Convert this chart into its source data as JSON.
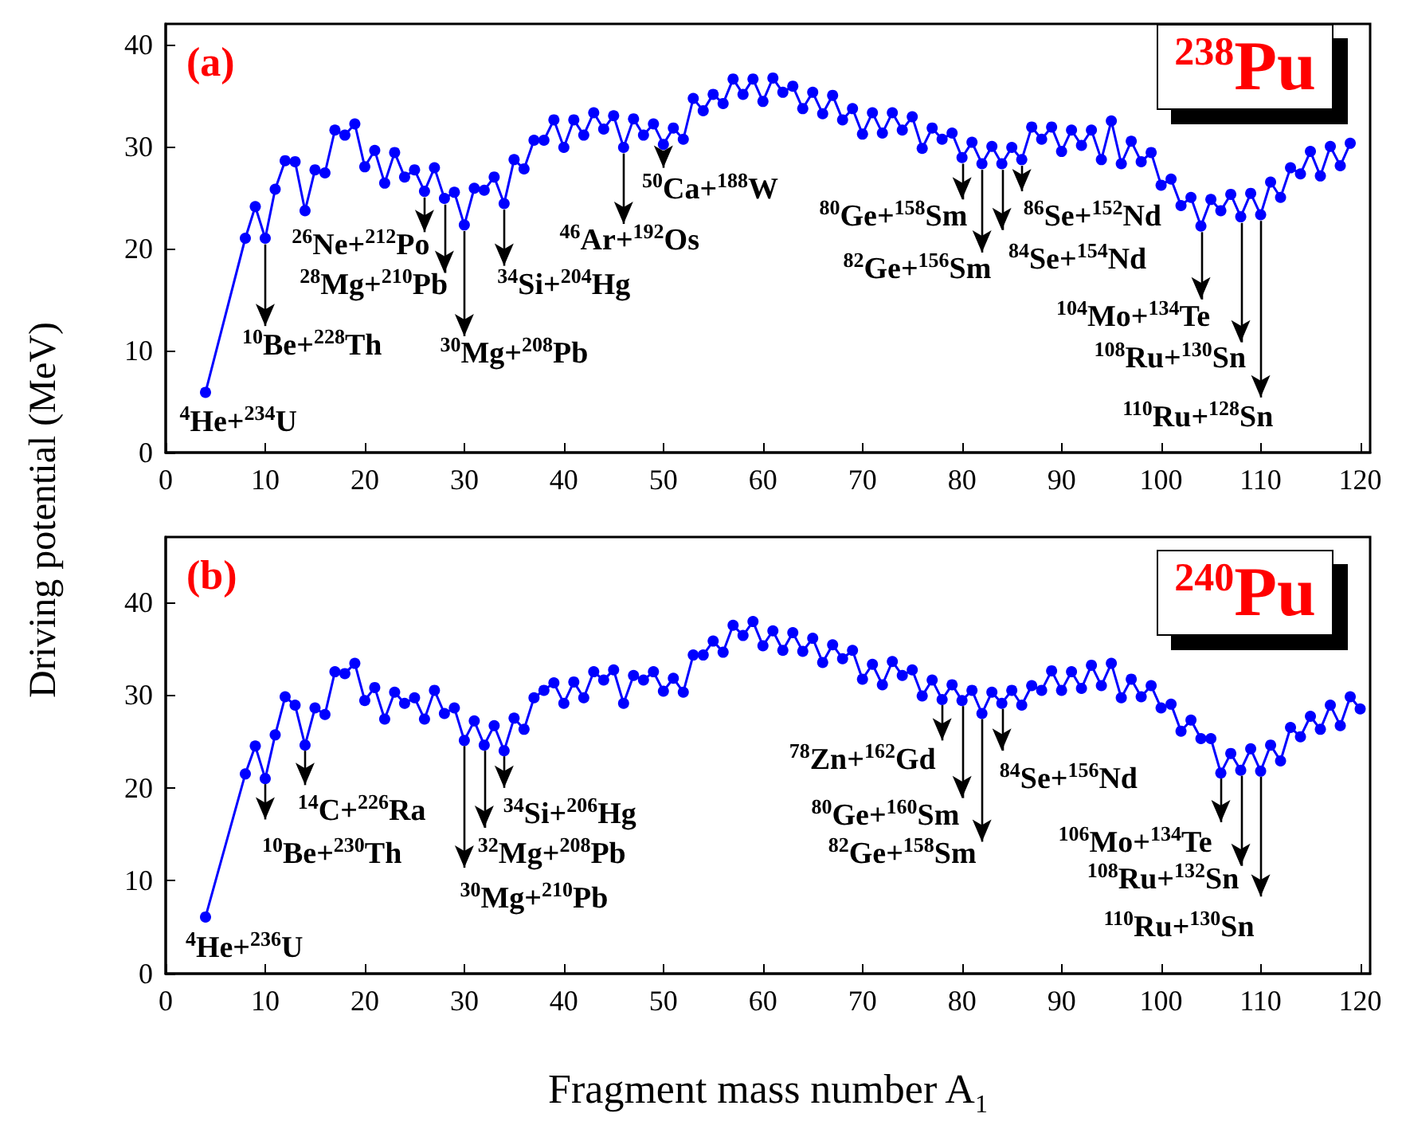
{
  "chart_data": [
    {
      "type": "line",
      "title": "(a)",
      "ylabel": "Driving potential (MeV)",
      "marker": "circle",
      "line_style": "solid",
      "xlim": [
        0,
        121
      ],
      "xticks": [
        0,
        10,
        20,
        30,
        40,
        50,
        60,
        70,
        80,
        90,
        100,
        110,
        120
      ],
      "ylim": [
        0,
        42
      ],
      "yticks": [
        0,
        10,
        20,
        30,
        40
      ],
      "x": [
        4,
        8,
        9,
        10,
        11,
        12,
        13,
        14,
        15,
        16,
        17,
        18,
        19,
        20,
        21,
        22,
        23,
        24,
        25,
        26,
        27,
        28,
        29,
        30,
        31,
        32,
        33,
        34,
        35,
        36,
        37,
        38,
        39,
        40,
        41,
        42,
        43,
        44,
        45,
        46,
        47,
        48,
        49,
        50,
        51,
        52,
        53,
        54,
        55,
        56,
        57,
        58,
        59,
        60,
        61,
        62,
        63,
        64,
        65,
        66,
        67,
        68,
        69,
        70,
        71,
        72,
        73,
        74,
        75,
        76,
        77,
        78,
        79,
        80,
        81,
        82,
        83,
        84,
        85,
        86,
        87,
        88,
        89,
        90,
        91,
        92,
        93,
        94,
        95,
        96,
        97,
        98,
        99,
        100,
        101,
        102,
        103,
        104,
        105,
        106,
        107,
        108,
        109,
        110,
        111,
        112,
        113,
        114,
        115,
        116,
        117,
        118,
        119
      ],
      "series": [
        {
          "color": "#0000ff",
          "values": [
            5.9,
            21.0,
            24.1,
            21.0,
            25.8,
            28.6,
            28.5,
            23.7,
            27.7,
            27.4,
            31.6,
            31.1,
            32.2,
            28.0,
            29.6,
            26.4,
            29.4,
            27.0,
            27.7,
            25.6,
            27.9,
            24.9,
            25.5,
            22.3,
            25.9,
            25.7,
            27.0,
            24.4,
            28.7,
            27.8,
            30.6,
            30.6,
            32.6,
            29.9,
            32.6,
            31.1,
            33.3,
            31.7,
            33.0,
            29.9,
            32.7,
            31.1,
            32.2,
            30.2,
            31.8,
            30.7,
            34.7,
            33.5,
            35.1,
            34.2,
            36.6,
            35.1,
            36.6,
            34.4,
            36.7,
            35.3,
            35.9,
            33.7,
            35.3,
            33.2,
            35.0,
            32.6,
            33.7,
            31.2,
            33.3,
            31.3,
            33.3,
            31.6,
            32.9,
            29.8,
            31.8,
            30.7,
            31.3,
            28.9,
            30.4,
            28.3,
            30.0,
            28.3,
            29.9,
            28.7,
            31.9,
            30.7,
            31.9,
            29.5,
            31.6,
            30.1,
            31.6,
            28.7,
            32.5,
            28.3,
            30.5,
            28.5,
            29.4,
            26.2,
            26.8,
            24.2,
            25.0,
            22.2,
            24.8,
            23.7,
            25.3,
            23.1,
            25.4,
            23.3,
            26.5,
            25.0,
            27.9,
            27.3,
            29.5,
            27.1,
            30.0,
            28.1,
            30.3
          ]
        }
      ],
      "annotations": [
        "$^{238}$Pu",
        {
          "text": "$^{4}$He+$^{234}$U",
          "x": 4,
          "y": 5.9
        },
        {
          "text": "$^{10}$Be+$^{228}$Th",
          "x": 10,
          "y": 21.0
        },
        {
          "text": "$^{26}$Ne+$^{212}$Po",
          "x": 26,
          "y": 25.6
        },
        {
          "text": "$^{28}$Mg+$^{210}$Pb",
          "x": 28,
          "y": 24.9
        },
        {
          "text": "$^{30}$Mg+$^{208}$Pb",
          "x": 30,
          "y": 22.3
        },
        {
          "text": "$^{34}$Si+$^{204}$Hg",
          "x": 34,
          "y": 24.4
        },
        {
          "text": "$^{46}$Ar+$^{192}$Os",
          "x": 46,
          "y": 29.9
        },
        {
          "text": "$^{50}$Ca+$^{188}$W",
          "x": 50,
          "y": 30.2
        },
        {
          "text": "$^{80}$Ge+$^{158}$Sm",
          "x": 80,
          "y": 28.9
        },
        {
          "text": "$^{82}$Ge+$^{156}$Sm",
          "x": 82,
          "y": 28.3
        },
        {
          "text": "$^{84}$Se+$^{154}$Nd",
          "x": 84,
          "y": 28.3
        },
        {
          "text": "$^{86}$Se+$^{152}$Nd",
          "x": 86,
          "y": 28.7
        },
        {
          "text": "$^{104}$Mo+$^{134}$Te",
          "x": 104,
          "y": 22.2
        },
        {
          "text": "$^{108}$Ru+$^{130}$Sn",
          "x": 108,
          "y": 23.1
        },
        {
          "text": "$^{110}$Ru+$^{128}$Sn",
          "x": 110,
          "y": 23.3
        }
      ]
    },
    {
      "type": "line",
      "title": "(b)",
      "xlabel": "Fragment mass number A$_{1}$",
      "marker": "circle",
      "line_style": "solid",
      "xlim": [
        0,
        121
      ],
      "xticks": [
        0,
        10,
        20,
        30,
        40,
        50,
        60,
        70,
        80,
        90,
        100,
        110,
        120
      ],
      "ylim": [
        0,
        47
      ],
      "yticks": [
        0,
        10,
        20,
        30,
        40
      ],
      "x": [
        4,
        8,
        9,
        10,
        11,
        12,
        13,
        14,
        15,
        16,
        17,
        18,
        19,
        20,
        21,
        22,
        23,
        24,
        25,
        26,
        27,
        28,
        29,
        30,
        31,
        32,
        33,
        34,
        35,
        36,
        37,
        38,
        39,
        40,
        41,
        42,
        43,
        44,
        45,
        46,
        47,
        48,
        49,
        50,
        51,
        52,
        53,
        54,
        55,
        56,
        57,
        58,
        59,
        60,
        61,
        62,
        63,
        64,
        65,
        66,
        67,
        68,
        69,
        70,
        71,
        72,
        73,
        74,
        75,
        76,
        77,
        78,
        79,
        80,
        81,
        82,
        83,
        84,
        85,
        86,
        87,
        88,
        89,
        90,
        91,
        92,
        93,
        94,
        95,
        96,
        97,
        98,
        99,
        100,
        101,
        102,
        103,
        104,
        105,
        106,
        107,
        108,
        109,
        110,
        111,
        112,
        113,
        114,
        115,
        116,
        117,
        118,
        119,
        120
      ],
      "series": [
        {
          "color": "#0000ff",
          "values": [
            6.1,
            21.5,
            24.5,
            21.0,
            25.7,
            29.8,
            28.9,
            24.6,
            28.6,
            27.9,
            32.5,
            32.3,
            33.4,
            29.4,
            30.8,
            27.4,
            30.3,
            29.1,
            29.7,
            27.4,
            30.5,
            28.0,
            28.6,
            25.1,
            27.2,
            24.6,
            26.7,
            24.0,
            27.5,
            26.3,
            29.7,
            30.5,
            31.3,
            29.1,
            31.4,
            29.7,
            32.5,
            31.6,
            32.7,
            29.1,
            32.1,
            31.6,
            32.5,
            30.4,
            31.8,
            30.3,
            34.3,
            34.3,
            35.8,
            34.6,
            37.5,
            36.4,
            37.9,
            35.3,
            36.9,
            34.8,
            36.7,
            34.7,
            36.1,
            33.5,
            35.4,
            33.9,
            34.8,
            31.7,
            33.3,
            31.1,
            33.6,
            32.1,
            32.7,
            29.9,
            31.6,
            29.5,
            31.1,
            29.4,
            30.5,
            28.0,
            30.3,
            29.1,
            30.5,
            28.9,
            31.0,
            30.5,
            32.6,
            30.5,
            32.5,
            30.7,
            33.2,
            31.0,
            33.4,
            29.7,
            31.7,
            29.8,
            31.0,
            28.6,
            29.0,
            26.1,
            27.3,
            25.3,
            25.3,
            21.6,
            23.7,
            21.9,
            24.2,
            21.8,
            24.6,
            22.9,
            26.5,
            25.5,
            27.7,
            26.3,
            28.9,
            26.7,
            29.8,
            28.5
          ]
        }
      ],
      "annotations": [
        "$^{240}$Pu",
        {
          "text": "$^{4}$He+$^{236}$U",
          "x": 4,
          "y": 6.1
        },
        {
          "text": "$^{10}$Be+$^{230}$Th",
          "x": 10,
          "y": 21.0
        },
        {
          "text": "$^{14}$C+$^{226}$Ra",
          "x": 14,
          "y": 24.6
        },
        {
          "text": "$^{30}$Mg+$^{210}$Pb",
          "x": 30,
          "y": 25.1
        },
        {
          "text": "$^{32}$Mg+$^{208}$Pb",
          "x": 32,
          "y": 24.6
        },
        {
          "text": "$^{34}$Si+$^{206}$Hg",
          "x": 34,
          "y": 24.0
        },
        {
          "text": "$^{78}$Zn+$^{162}$Gd",
          "x": 78,
          "y": 29.5
        },
        {
          "text": "$^{80}$Ge+$^{160}$Sm",
          "x": 80,
          "y": 29.4
        },
        {
          "text": "$^{82}$Ge+$^{158}$Sm",
          "x": 82,
          "y": 28.0
        },
        {
          "text": "$^{84}$Se+$^{156}$Nd",
          "x": 84,
          "y": 29.1
        },
        {
          "text": "$^{106}$Mo+$^{134}$Te",
          "x": 106,
          "y": 21.6
        },
        {
          "text": "$^{108}$Ru+$^{132}$Sn",
          "x": 108,
          "y": 21.9
        },
        {
          "text": "$^{110}$Ru+$^{130}$Sn",
          "x": 110,
          "y": 21.8
        }
      ]
    }
  ]
}
